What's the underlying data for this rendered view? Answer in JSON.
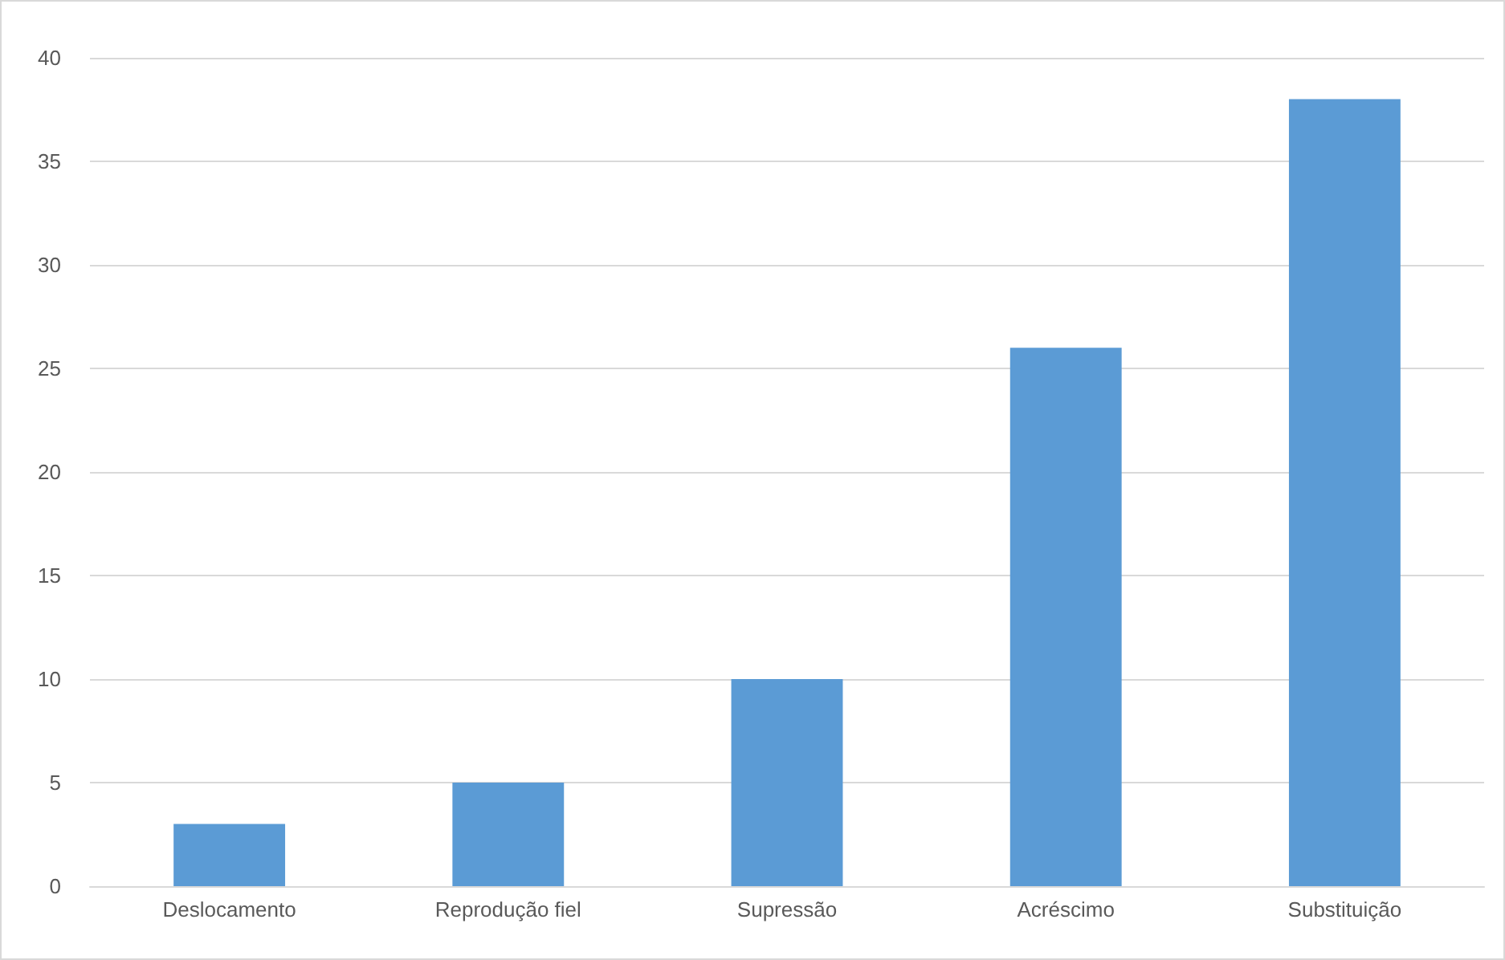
{
  "chart_data": {
    "type": "bar",
    "categories": [
      "Deslocamento",
      "Reprodução fiel",
      "Supressão",
      "Acréscimo",
      "Substituição"
    ],
    "values": [
      3,
      5,
      10,
      26,
      38
    ],
    "color": "#5b9bd5",
    "ylim": [
      0,
      40
    ],
    "yticks": [
      0,
      5,
      10,
      15,
      20,
      25,
      30,
      35,
      40
    ],
    "grid": "y"
  }
}
